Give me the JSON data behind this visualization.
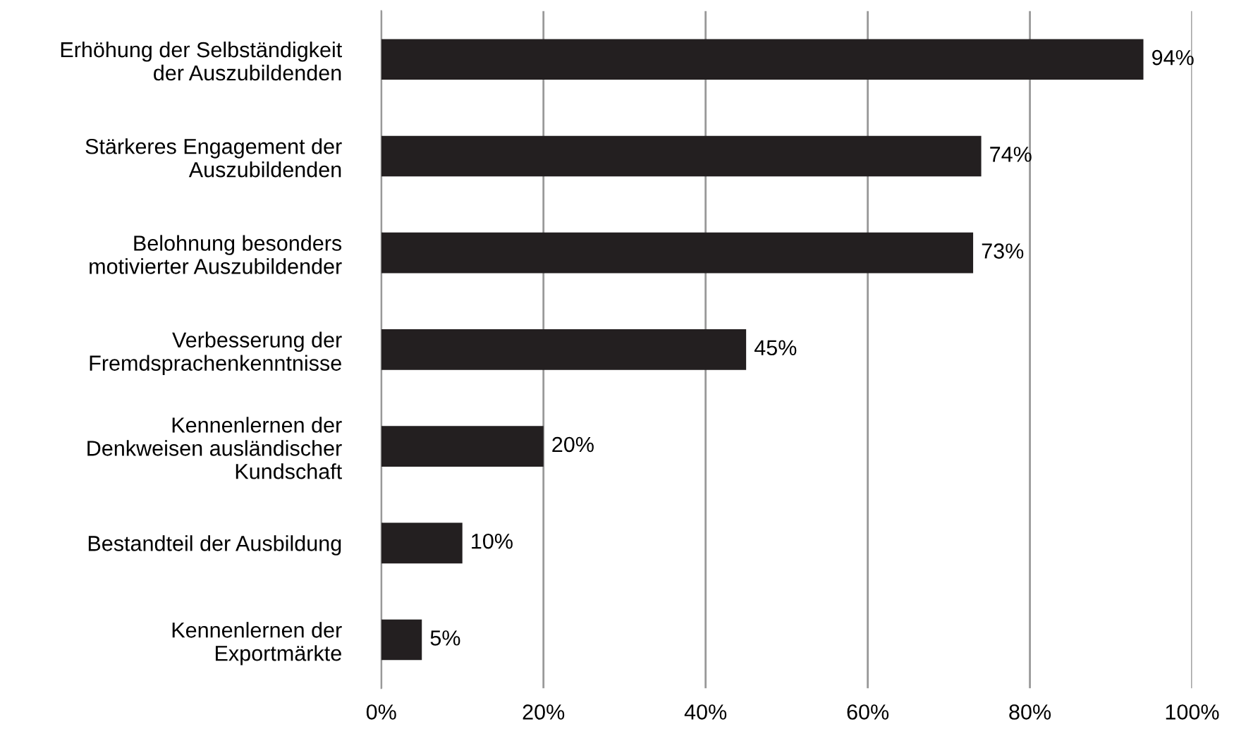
{
  "chart_data": {
    "type": "bar",
    "orientation": "horizontal",
    "categories": [
      "Erhöhung der Selbständigkeit\nder Auszubildenden",
      "Stärkeres Engagement der\nAuszubildenden",
      "Belohnung besonders\nmotivierter Auszubildender",
      "Verbesserung der\nFremdsprachenkenntnisse",
      "Kennenlernen der\nDenkweisen ausländischer\nKundschaft",
      "Bestandteil der Ausbildung",
      "Kennenlernen der\nExportmärkte"
    ],
    "values": [
      94,
      74,
      73,
      45,
      20,
      10,
      5
    ],
    "value_labels": [
      "94%",
      "74%",
      "73%",
      "45%",
      "20%",
      "10%",
      "5%"
    ],
    "color": "#231f20",
    "xlim": [
      0,
      100
    ],
    "xticks": [
      {
        "value": 0,
        "label": "0%"
      },
      {
        "value": 20,
        "label": "20%"
      },
      {
        "value": 40,
        "label": "40%"
      },
      {
        "value": 60,
        "label": "60%"
      },
      {
        "value": 80,
        "label": "80%"
      },
      {
        "value": 100,
        "label": "100%"
      }
    ],
    "grid": "x",
    "legend": false
  }
}
